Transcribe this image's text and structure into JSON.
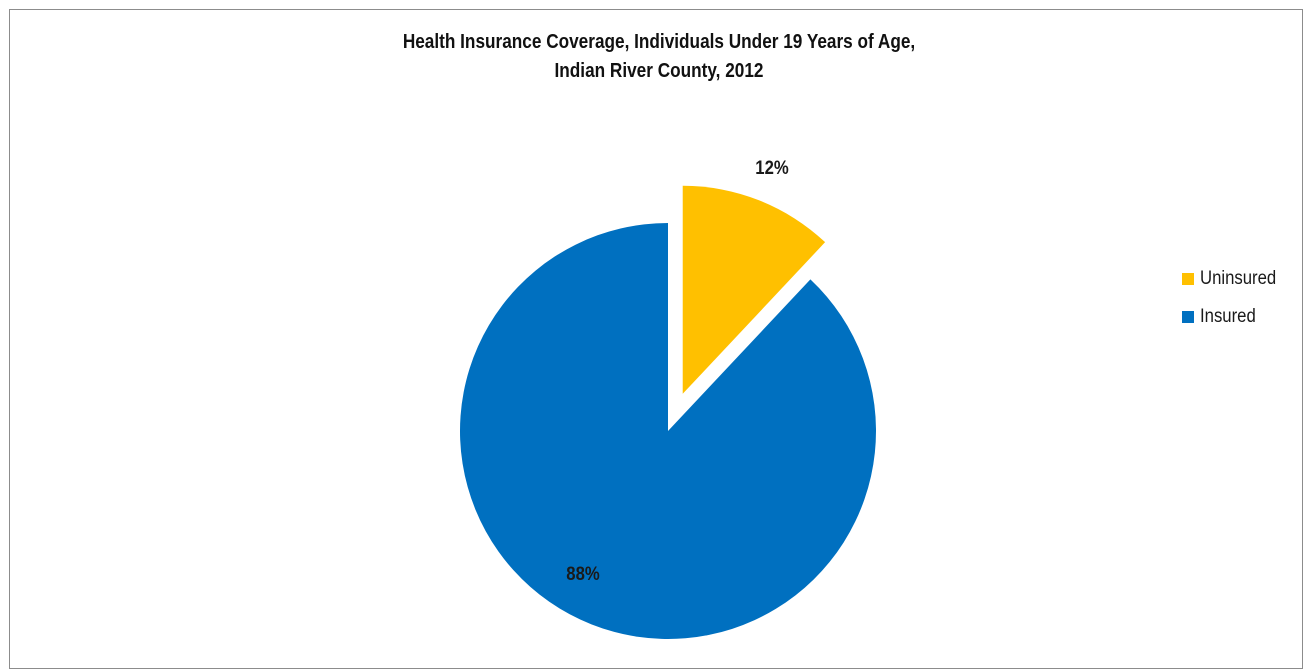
{
  "chart_data": {
    "type": "pie",
    "title": "Health Insurance Coverage, Individuals Under 19 Years of Age,",
    "title_line2": "Indian River County, 2012",
    "categories": [
      "Uninsured",
      "Insured"
    ],
    "values": [
      12,
      88
    ],
    "data_labels": [
      "12%",
      "88%"
    ],
    "colors": [
      "#FFC000",
      "#0070C0"
    ],
    "exploded": [
      "Uninsured"
    ],
    "legend_position": "right"
  }
}
